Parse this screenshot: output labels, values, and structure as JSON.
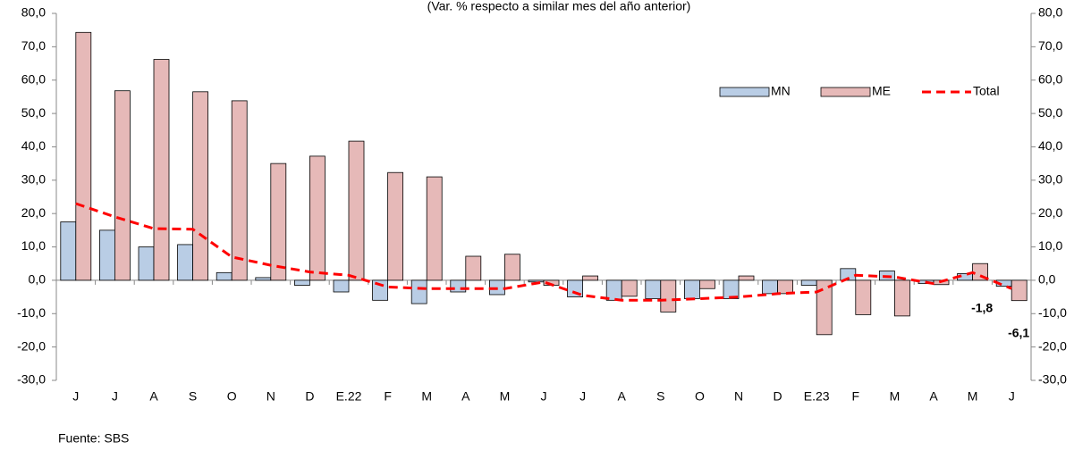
{
  "chart_data": {
    "type": "bar-line",
    "subtitle": "(Var. % respecto a similar mes del año anterior)",
    "source": "Fuente: SBS",
    "categories": [
      "J",
      "J",
      "A",
      "S",
      "O",
      "N",
      "D",
      "E.22",
      "F",
      "M",
      "A",
      "M",
      "J",
      "J",
      "A",
      "S",
      "O",
      "N",
      "D",
      "E.23",
      "F",
      "M",
      "A",
      "M",
      "J"
    ],
    "series": [
      {
        "name": "MN",
        "type": "bar",
        "color": "#b9cde5",
        "values": [
          17.5,
          15,
          10,
          10.7,
          2.3,
          0.8,
          -1.5,
          -3.5,
          -6,
          -7,
          -3.5,
          -4.3,
          -0.5,
          -5,
          -6,
          -5.5,
          -5.5,
          -5.5,
          -4,
          -1.5,
          3.5,
          2.8,
          -1,
          2,
          -1.8
        ],
        "value_labels": [
          null,
          null,
          null,
          null,
          null,
          null,
          null,
          null,
          null,
          null,
          null,
          null,
          null,
          null,
          null,
          null,
          null,
          null,
          null,
          null,
          null,
          null,
          null,
          null,
          "-1,8"
        ]
      },
      {
        "name": "ME",
        "type": "bar",
        "color": "#e6b9b8",
        "values": [
          74.3,
          56.8,
          66.2,
          56.5,
          53.8,
          35,
          37.2,
          41.7,
          32.3,
          31,
          7.2,
          7.8,
          -1.5,
          1.3,
          -4.8,
          -9.5,
          -2.5,
          1.3,
          -4,
          -16.3,
          -10.3,
          -10.7,
          -1.3,
          5,
          -6.1
        ],
        "value_labels": [
          null,
          null,
          null,
          null,
          null,
          null,
          null,
          null,
          null,
          null,
          null,
          null,
          null,
          null,
          null,
          null,
          null,
          null,
          null,
          null,
          null,
          null,
          null,
          null,
          "-6,1"
        ]
      },
      {
        "name": "Total",
        "type": "line",
        "color": "#ff0000",
        "axis": "y2",
        "values": [
          23,
          19,
          15.5,
          15.3,
          7,
          4.5,
          2.5,
          1.5,
          -2,
          -2.5,
          -2.5,
          -2.5,
          -0.5,
          -4.5,
          -6,
          -6,
          -5.5,
          -5,
          -4,
          -3.5,
          1.5,
          1,
          -1,
          2.3,
          -2.5
        ]
      }
    ],
    "ylim": [
      -30,
      80
    ],
    "yticks": [
      {
        "value": -30,
        "label": "-30,0"
      },
      {
        "value": -20,
        "label": "-20,0"
      },
      {
        "value": -10,
        "label": "-10,0"
      },
      {
        "value": 0,
        "label": "0,0"
      },
      {
        "value": 10,
        "label": "10,0"
      },
      {
        "value": 20,
        "label": "20,0"
      },
      {
        "value": 30,
        "label": "30,0"
      },
      {
        "value": 40,
        "label": "40,0"
      },
      {
        "value": 50,
        "label": "50,0"
      },
      {
        "value": 60,
        "label": "60,0"
      },
      {
        "value": 70,
        "label": "70,0"
      },
      {
        "value": 80,
        "label": "80,0"
      }
    ],
    "y2lim": [
      -30,
      80
    ],
    "y2ticks": [
      {
        "value": -30,
        "label": "-30,0"
      },
      {
        "value": -20,
        "label": "-20,0"
      },
      {
        "value": -10,
        "label": "-10,0"
      },
      {
        "value": 0,
        "label": "0,0"
      },
      {
        "value": 10,
        "label": "10,0"
      },
      {
        "value": 20,
        "label": "20,0"
      },
      {
        "value": 30,
        "label": "30,0"
      },
      {
        "value": 40,
        "label": "40,0"
      },
      {
        "value": 50,
        "label": "50,0"
      },
      {
        "value": 60,
        "label": "60,0"
      },
      {
        "value": 70,
        "label": "70,0"
      },
      {
        "value": 80,
        "label": "80,0"
      }
    ],
    "legend": "upper right"
  }
}
